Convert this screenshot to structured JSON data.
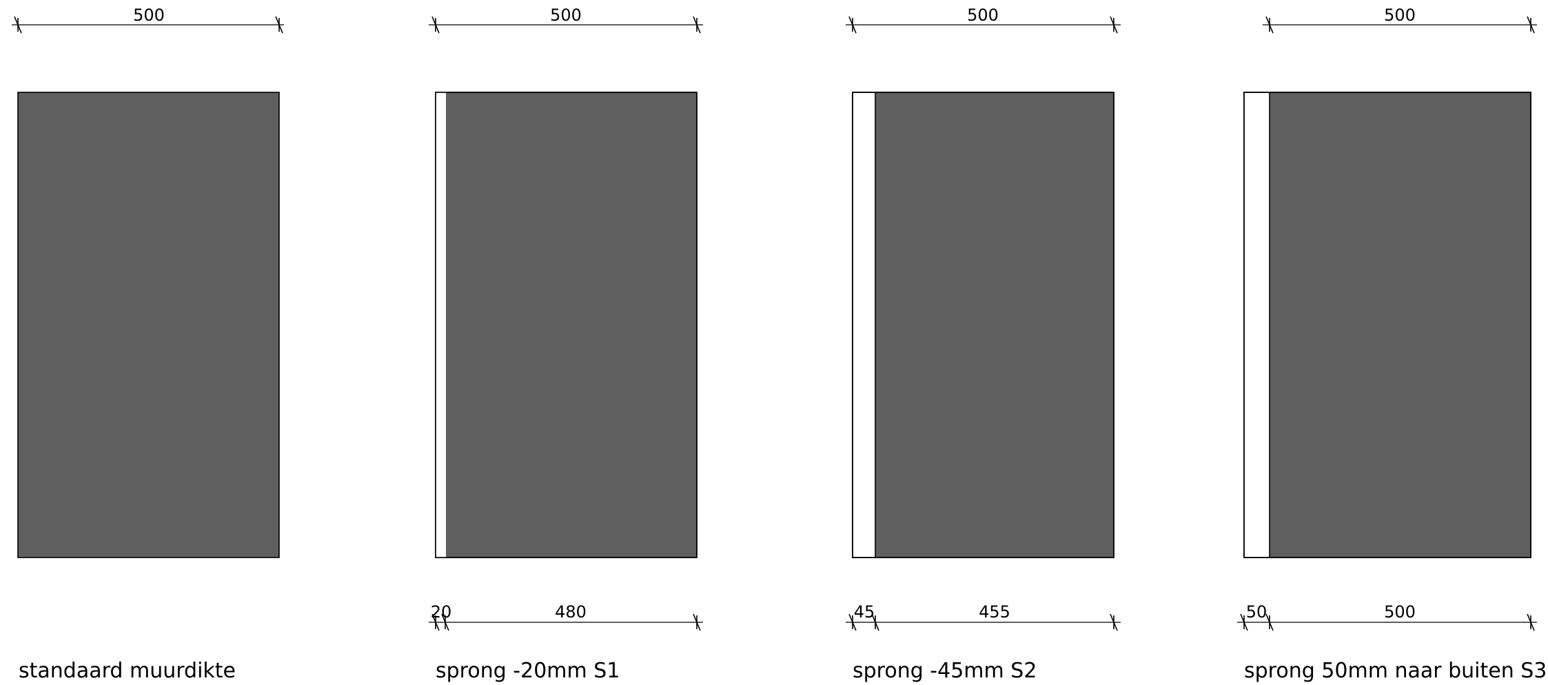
{
  "colors": {
    "wall_fill": "#5f5f5f",
    "offset_fill": "#ffffff",
    "line": "#000000",
    "background": "#ffffff"
  },
  "panels": [
    {
      "caption": "standaard muurdikte",
      "top_dimension": "500",
      "offset_mm": 0,
      "bottom_dimensions": []
    },
    {
      "caption": "sprong -20mm S1",
      "top_dimension": "500",
      "offset_mm": 20,
      "bottom_dimensions": [
        "20",
        "480"
      ]
    },
    {
      "caption": "sprong -45mm S2",
      "top_dimension": "500",
      "offset_mm": 45,
      "bottom_dimensions": [
        "45",
        "455"
      ]
    },
    {
      "caption": "sprong 50mm naar buiten S3",
      "top_dimension": "500",
      "offset_mm": 50,
      "bottom_dimensions": [
        "50",
        "500"
      ]
    }
  ]
}
